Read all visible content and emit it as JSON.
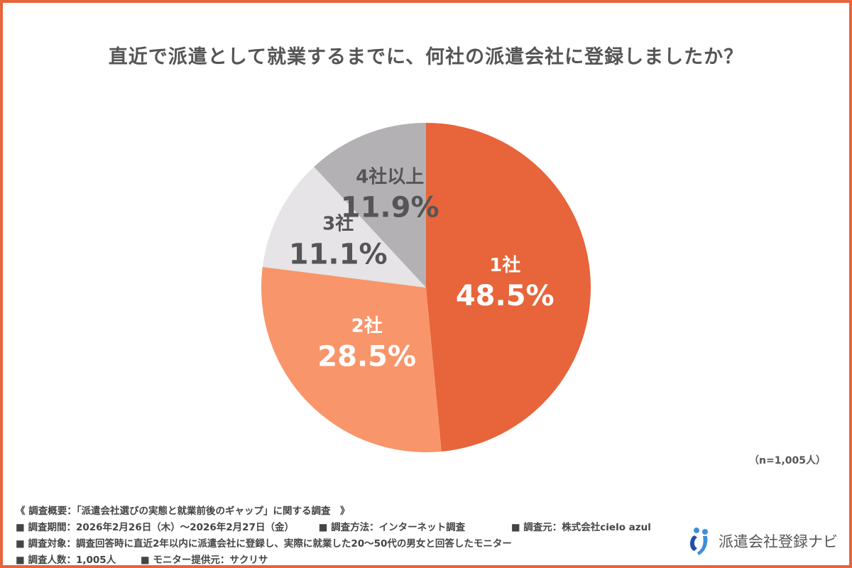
{
  "chart_data": {
    "type": "pie",
    "title": "直近で派遣として就業するまでに、何社の派遣会社に登録しましたか？",
    "categories": [
      "1社",
      "2社",
      "3社",
      "4社以上"
    ],
    "values": [
      48.5,
      28.5,
      11.1,
      11.9
    ],
    "value_labels": [
      "48.5%",
      "28.5%",
      "11.1%",
      "11.9%"
    ],
    "colors": [
      "#E8643A",
      "#F9956A",
      "#E6E4E6",
      "#B3B1B4"
    ],
    "label_colors": [
      "#FFFFFF",
      "#FFFFFF",
      "#555555",
      "#555555"
    ],
    "start": "top",
    "direction": "clockwise",
    "legend": "none"
  },
  "sample_note": "（n=1,005人）",
  "footer": {
    "heading": "《 調査概要：「派遣会社選びの実態と就業前後のギャップ」に関する調査　》",
    "period": "■ 調査期間：2026年2月26日（木）～2026年2月27日（金）",
    "method": "■ 調査方法：インターネット調査",
    "source": "■ 調査元：株式会社cielo azul",
    "target": "■ 調査対象：調査回答時に直近2年以内に派遣会社に登録し、実際に就業した20～50代の男女と回答したモニター",
    "count": "■ 調査人数：1,005人",
    "provider": "■ モニター提供元：サクリサ"
  },
  "logo": {
    "text": "派遣会社登録ナビ",
    "colors": [
      "#1F4FA8",
      "#3E8FD8"
    ]
  }
}
